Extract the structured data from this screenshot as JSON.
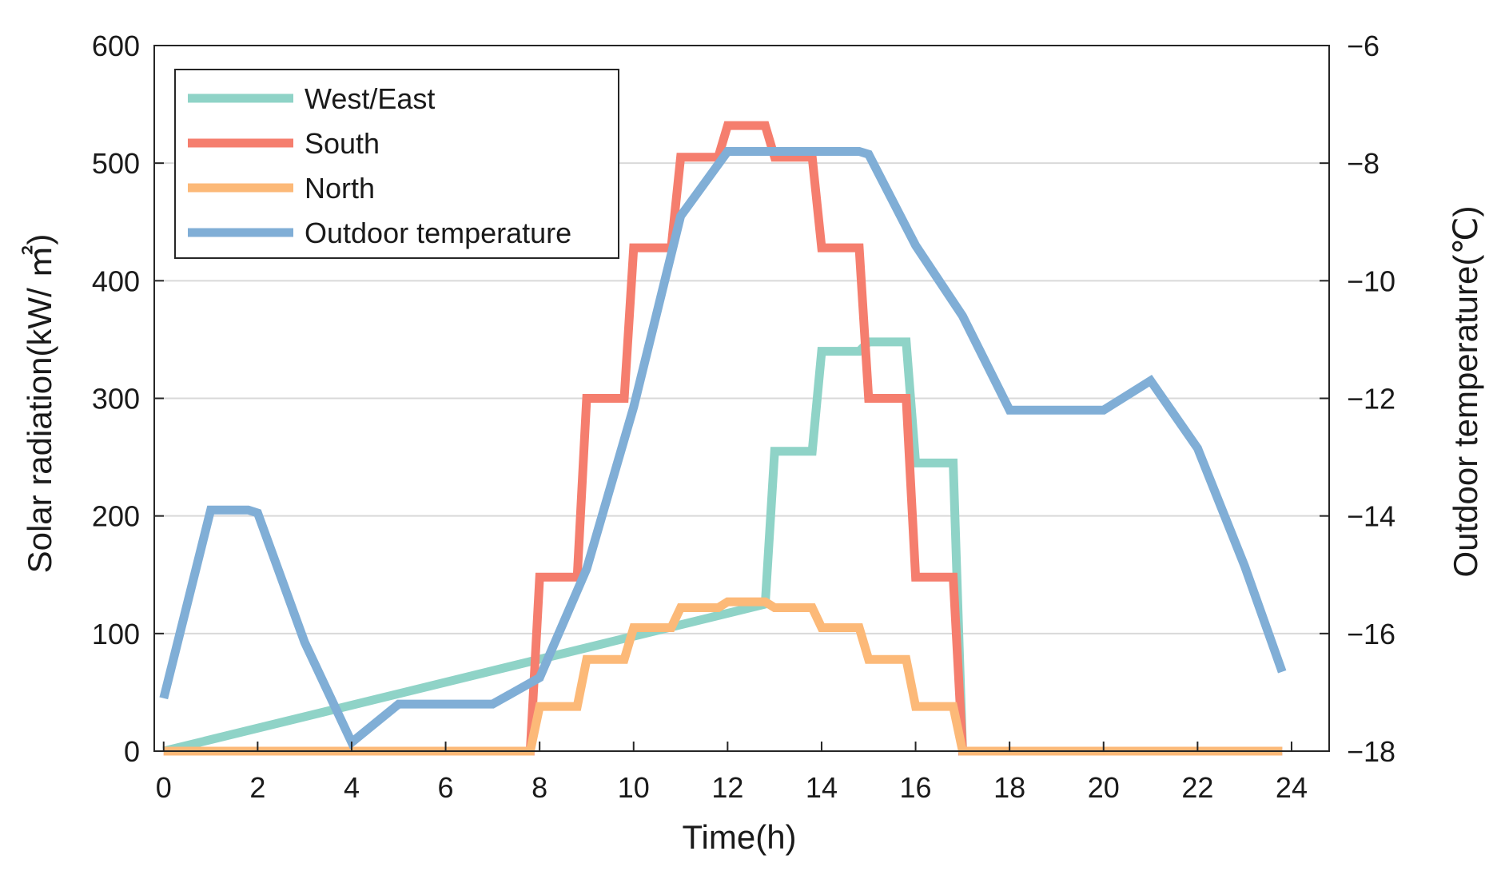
{
  "chart_data": {
    "type": "line",
    "title": "",
    "xlabel": "Time(h)",
    "ylabel_left": "Solar radiation(kW/ ㎡)",
    "ylabel_right": "Outdoor temperature(℃)",
    "xlim": [
      -0.2,
      24.8
    ],
    "ylim_left": [
      0,
      600
    ],
    "ylim_right": [
      -18,
      -6
    ],
    "x_ticks": [
      "0",
      "2",
      "4",
      "6",
      "8",
      "10",
      "12",
      "14",
      "16",
      "18",
      "20",
      "22",
      "24"
    ],
    "y_left_ticks": [
      "0",
      "100",
      "200",
      "300",
      "400",
      "500",
      "600"
    ],
    "y_right_ticks": [
      "−18",
      "−16",
      "−14",
      "−12",
      "−10",
      "−8",
      "−6"
    ],
    "grid": "horizontal",
    "legend_position": "top-left",
    "series": [
      {
        "name": "West/East",
        "axis": "left",
        "color": "#8fd3c7",
        "x": [
          0,
          12.8,
          13,
          13.8,
          14,
          14.8,
          15,
          15.8,
          16,
          16.8,
          17,
          23.8
        ],
        "values": [
          0,
          125,
          255,
          255,
          340,
          340,
          348,
          348,
          245,
          245,
          0,
          0
        ]
      },
      {
        "name": "South",
        "axis": "left",
        "color": "#f57e6e",
        "x": [
          0,
          7.8,
          8,
          8.8,
          9,
          9.8,
          10,
          10.8,
          11,
          11.8,
          12,
          12.8,
          13,
          13.8,
          14,
          14.8,
          15,
          15.8,
          16,
          16.8,
          17,
          23.8
        ],
        "values": [
          0,
          0,
          148,
          148,
          300,
          300,
          428,
          428,
          505,
          505,
          532,
          532,
          505,
          505,
          428,
          428,
          300,
          300,
          148,
          148,
          0,
          0
        ]
      },
      {
        "name": "North",
        "axis": "left",
        "color": "#fcb978",
        "x": [
          0,
          7.8,
          8,
          8.8,
          9,
          9.8,
          10,
          10.8,
          11,
          11.8,
          12,
          12.8,
          13,
          13.8,
          14,
          14.8,
          15,
          15.8,
          16,
          16.8,
          17,
          23.8
        ],
        "values": [
          0,
          0,
          38,
          38,
          78,
          78,
          105,
          105,
          122,
          122,
          127,
          127,
          122,
          122,
          105,
          105,
          78,
          78,
          38,
          38,
          0,
          0
        ]
      },
      {
        "name": "Outdoor temperature",
        "axis": "right",
        "color": "#80aed6",
        "x": [
          0,
          1,
          1.8,
          2,
          3,
          4,
          5,
          6,
          7,
          8,
          9,
          10,
          11,
          12,
          13,
          14,
          14.8,
          15,
          16,
          17,
          18,
          19,
          20,
          21,
          22,
          23,
          23.8
        ],
        "values": [
          -17.1,
          -13.9,
          -13.9,
          -13.95,
          -16.15,
          -17.85,
          -17.2,
          -17.2,
          -17.2,
          -16.75,
          -14.9,
          -12.15,
          -8.9,
          -7.8,
          -7.8,
          -7.8,
          -7.8,
          -7.85,
          -9.4,
          -10.6,
          -12.2,
          -12.2,
          -12.2,
          -11.7,
          -12.85,
          -14.85,
          -16.65
        ]
      }
    ]
  }
}
